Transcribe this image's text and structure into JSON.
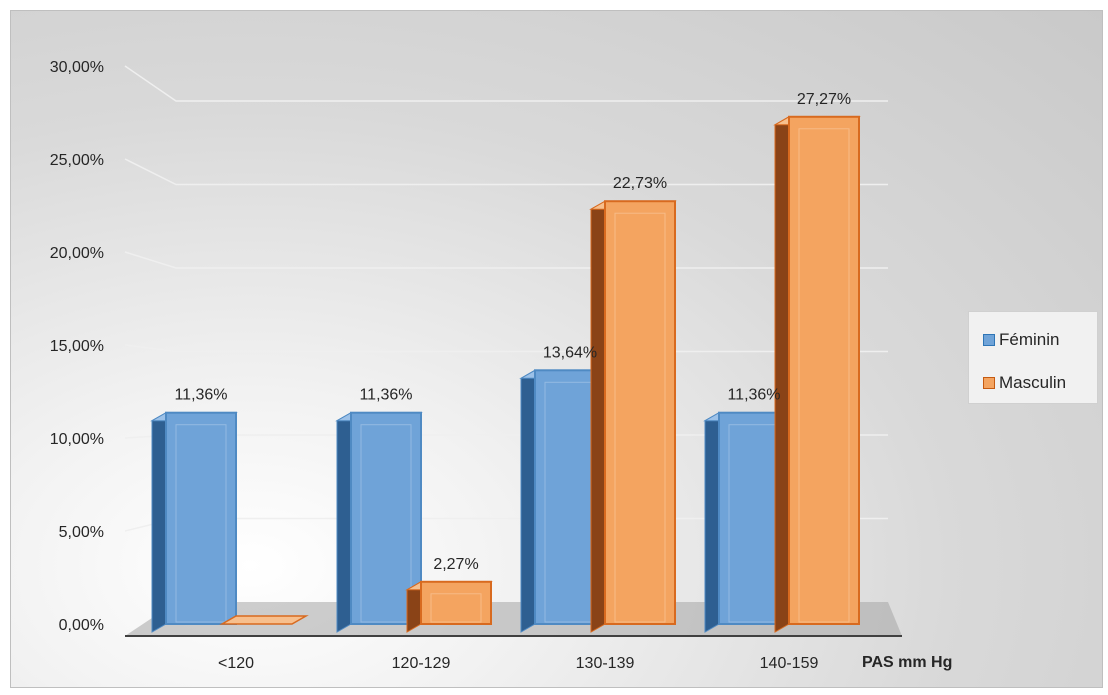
{
  "chart_data": {
    "type": "bar",
    "categories": [
      "<120",
      "120-129",
      "130-139",
      "140-159"
    ],
    "series": [
      {
        "name": "Féminin",
        "values": [
          11.36,
          11.36,
          13.64,
          11.36
        ],
        "labels": [
          "11,36%",
          "11,36%",
          "13,64%",
          "11,36%"
        ],
        "color": "#5b9bd5"
      },
      {
        "name": "Masculin",
        "values": [
          0,
          2.27,
          22.73,
          27.27
        ],
        "labels": [
          "",
          "2,27%",
          "22,73%",
          "27,27%"
        ],
        "color": "#ed7d31"
      }
    ],
    "xlabel": "PAS mm Hg",
    "ylabel": "",
    "ylim": [
      0,
      30
    ],
    "ytick_labels": [
      "0,00%",
      "5,00%",
      "10,00%",
      "15,00%",
      "20,00%",
      "25,00%",
      "30,00%"
    ],
    "grid": true,
    "legend_position": "right",
    "style": "3d-clustered-column"
  }
}
